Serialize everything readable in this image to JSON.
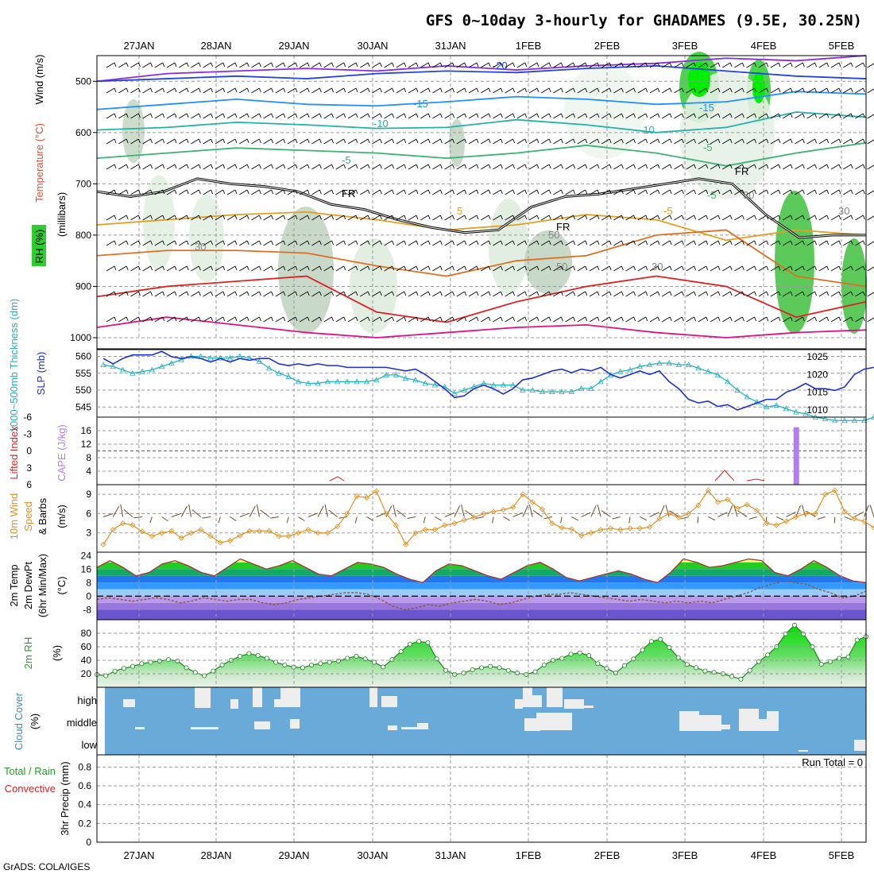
{
  "title": "GFS 0~10day 3-hourly for GHADAMES (9.5E, 30.25N)",
  "footer": "GrADS: COLA/IGES",
  "dates": [
    "27JAN",
    "28JAN",
    "29JAN",
    "30JAN",
    "31JAN",
    "1FEB",
    "2FEB",
    "3FEB",
    "4FEB",
    "5FEB"
  ],
  "panels": {
    "upper": {
      "ylabel_wind": "Wind (m/s)",
      "ylabel_temp": "Temperature (°C)",
      "ylabel_rh": "RH (%)",
      "ylabel_mb": "(millibars)",
      "ticks": [
        "500",
        "600",
        "700",
        "800",
        "900",
        "1000"
      ],
      "contour_labels": [
        "-20",
        "-15",
        "-10",
        "-5",
        "-15",
        "-10",
        "-5",
        "-5",
        "-5",
        "5",
        "FR",
        "FR",
        "FR",
        "FR",
        "30",
        "30",
        "30",
        "50",
        "50",
        "30"
      ]
    },
    "slp": {
      "ylabel_thick": "1000~500mb Thickness (dm)",
      "ylabel_slp": "SLP (mb)",
      "left_ticks": [
        "560",
        "555",
        "550",
        "545"
      ],
      "right_ticks": [
        "1025",
        "1020",
        "1015",
        "1010"
      ]
    },
    "cape": {
      "ylabel_li": "Lifted Index",
      "ylabel_cape": "CAPE (J/kg)",
      "left_ticks": [
        "-6",
        "-3",
        "0",
        "3",
        "6"
      ],
      "right_ticks": [
        "16",
        "12",
        "8",
        "4"
      ]
    },
    "wind10": {
      "ylabel1": "10m Wind",
      "ylabel2": "Speed",
      "ylabel3": "& Barbs",
      "unit": "(m/s)",
      "ticks": [
        "9",
        "6",
        "3"
      ]
    },
    "temp": {
      "ylabel1": "2m Temp",
      "ylabel2": "2m DewPt",
      "ylabel3": "(6hr Min/Max)",
      "unit": "(°C)",
      "ticks": [
        "24",
        "16",
        "8",
        "0",
        "-8"
      ]
    },
    "rh": {
      "ylabel": "2m RH",
      "unit": "(%)",
      "ticks": [
        "80",
        "60",
        "40",
        "20"
      ]
    },
    "cloud": {
      "ylabel": "Cloud Cover",
      "unit": "(%)",
      "levels": [
        "high",
        "middle",
        "low"
      ]
    },
    "precip": {
      "ylabel1": "Total / Rain",
      "ylabel2": "Convective",
      "ylabel3": "3hr Precip (mm)",
      "ticks": [
        "0.8",
        "0.6",
        "0.4",
        "0.2",
        "0"
      ],
      "run_total": "Run Total = 0"
    }
  },
  "colors": {
    "slp": "#1c2fd0",
    "thickness": "#22b0c0",
    "li": "#dd2222",
    "cape": "#b47cf0",
    "wind10": "#e09020",
    "rh_fill": "#2ecc2e",
    "cloud_bg": "#6aaad8",
    "cloud_fill": "#eeeeee"
  },
  "chart_data": [
    {
      "type": "line",
      "name": "sea-level pressure",
      "x_unit": "3-hour step from 26JAN 12Z",
      "x": [
        0,
        1,
        2,
        3,
        4,
        5,
        6,
        7,
        8,
        9,
        10,
        11,
        12,
        13,
        14,
        15,
        16,
        17,
        18,
        19,
        20,
        21,
        22,
        23,
        24,
        25,
        26,
        27,
        28,
        29,
        30,
        31,
        32,
        33,
        34,
        35,
        36,
        37,
        38,
        39,
        40,
        41,
        42,
        43,
        44,
        45,
        46,
        47,
        48,
        49,
        50,
        51,
        52,
        53,
        54,
        55,
        56,
        57,
        58,
        59,
        60,
        61,
        62,
        63,
        64,
        65,
        66,
        67,
        68,
        69,
        70,
        71,
        72,
        73,
        74,
        75,
        76,
        77,
        78,
        79
      ],
      "slp_mb": [
        1024.5,
        1023,
        1024.5,
        1025.5,
        1025.5,
        1025.5,
        1026.5,
        1025,
        1024.5,
        1025,
        1024.5,
        1023.5,
        1024.5,
        1023.5,
        1024.5,
        1024,
        1024.5,
        1024.5,
        1023,
        1022.5,
        1023,
        1022.5,
        1023,
        1022.5,
        1022.5,
        1022,
        1022,
        1022,
        1022,
        1022,
        1021.5,
        1021,
        1021.5,
        1020,
        1018,
        1016,
        1013.5,
        1014,
        1016,
        1017,
        1016,
        1014.5,
        1016,
        1018.5,
        1019,
        1020,
        1021,
        1021.5,
        1020.5,
        1021.5,
        1021,
        1022,
        1020,
        1019,
        1020,
        1021,
        1020,
        1021,
        1018,
        1016,
        1013,
        1012,
        1012.5,
        1011,
        1011.5,
        1010,
        1011,
        1012,
        1013,
        1013,
        1015,
        1016,
        1017.5,
        1016,
        1016,
        1015.5,
        1016.5,
        1020,
        1021.5,
        1022
      ]
    },
    {
      "type": "line",
      "name": "1000~500mb thickness",
      "unit": "dm",
      "thickness_dm": [
        557.5,
        557,
        556,
        555,
        555.5,
        556,
        557,
        558,
        559,
        560,
        560,
        559.5,
        559.5,
        559.5,
        560,
        559.5,
        558.5,
        556.5,
        555,
        554,
        552.5,
        552,
        552,
        552.5,
        552.5,
        552.5,
        552.5,
        552.5,
        553,
        554.5,
        554.5,
        553.5,
        553,
        552,
        551.5,
        551,
        549,
        550,
        551,
        552,
        551.5,
        551.5,
        551.5,
        550,
        550,
        549.5,
        549.5,
        549.5,
        549.5,
        550.5,
        550.5,
        552.5,
        554.5,
        555.5,
        556,
        557,
        557.5,
        558,
        558,
        557.5,
        557.5,
        556.5,
        555.5,
        554.5,
        552.5,
        550,
        548,
        546.5,
        545,
        545.5,
        544.5,
        543.5,
        543,
        542,
        541.5,
        541,
        541,
        541,
        541,
        542
      ]
    },
    {
      "type": "bar",
      "name": "CAPE",
      "unit": "J/kg",
      "step": 71,
      "value": 17
    },
    {
      "type": "line",
      "name": "10m wind speed",
      "unit": "m/s",
      "values": [
        1.2,
        3.5,
        4.5,
        4.2,
        3.2,
        2.5,
        3,
        3.3,
        2.2,
        3,
        3.5,
        2.5,
        1.5,
        1.8,
        2.6,
        3.3,
        3.3,
        3.3,
        2.5,
        2.5,
        3,
        3.5,
        3,
        3,
        4,
        6,
        8.7,
        8.5,
        9.5,
        6,
        4.2,
        1.2,
        3,
        3.5,
        3.5,
        4.2,
        4.5,
        5,
        5.4,
        6,
        6.3,
        6.6,
        7,
        9,
        7.8,
        6.7,
        4.5,
        3.8,
        3.6,
        2.6,
        3,
        3.5,
        3.7,
        3.5,
        3.7,
        3.7,
        3.9,
        5.2,
        6,
        5.4,
        6,
        7.3,
        9.6,
        7.8,
        8.2,
        6.8,
        7.4,
        6.5,
        4.5,
        4.2,
        4.8,
        5.5,
        6,
        6,
        9,
        9.6,
        6.3,
        5.2,
        4.8,
        3.8
      ],
      "ylim": [
        0,
        10.5
      ]
    },
    {
      "type": "area",
      "name": "2m RH",
      "unit": "%",
      "values": [
        19,
        17,
        24,
        28,
        31,
        35,
        37,
        39,
        41,
        39,
        29,
        22,
        17,
        24,
        33,
        40,
        46,
        50,
        47,
        43,
        37,
        33,
        30,
        29,
        33,
        35,
        37,
        39,
        43,
        46,
        42,
        37,
        30,
        41,
        53,
        64,
        68,
        66,
        42,
        25,
        19,
        21,
        26,
        29,
        31,
        29,
        25,
        21,
        19,
        23,
        33,
        40,
        43,
        49,
        51,
        47,
        35,
        28,
        21,
        32,
        42,
        55,
        68,
        71,
        59,
        44,
        34,
        29,
        24,
        22,
        20,
        16,
        12,
        25,
        38,
        48,
        60,
        79,
        92,
        79,
        60,
        34,
        38,
        43,
        45,
        70,
        75
      ],
      "ylim": [
        0,
        100
      ]
    },
    {
      "type": "area",
      "name": "2m temperature",
      "unit": "°C",
      "temp_max": [
        17,
        21,
        17,
        12,
        14,
        19,
        21,
        18,
        14,
        12,
        17,
        22,
        19,
        16,
        18,
        21,
        17,
        13,
        12,
        16,
        20,
        19,
        17,
        13,
        10,
        8,
        15,
        19,
        18,
        15,
        12,
        10,
        14,
        18,
        20,
        16,
        11,
        9,
        11,
        13,
        15,
        13,
        10,
        8,
        14,
        22,
        20,
        17,
        18,
        20,
        22,
        21,
        14,
        12,
        16,
        21,
        17,
        12,
        9,
        8
      ],
      "dewpoint": [
        -2,
        -1,
        -2,
        -3,
        -2,
        -1,
        -2,
        -4,
        -3,
        -1,
        -2,
        -3,
        -2,
        -2,
        -4,
        -5,
        -4,
        -2,
        -1,
        0,
        1,
        2,
        2,
        1,
        -2,
        -6,
        -8,
        -7,
        -5,
        -6,
        -4,
        -3,
        -2,
        -3,
        -5,
        -4,
        -2,
        0,
        1,
        1,
        2,
        1,
        0,
        -1,
        -2,
        -3,
        -2,
        -3,
        -4,
        -3,
        -4,
        -3,
        -4,
        -2,
        0,
        2,
        5,
        7,
        9,
        8,
        7,
        4,
        2,
        -1,
        0,
        3
      ]
    }
  ]
}
